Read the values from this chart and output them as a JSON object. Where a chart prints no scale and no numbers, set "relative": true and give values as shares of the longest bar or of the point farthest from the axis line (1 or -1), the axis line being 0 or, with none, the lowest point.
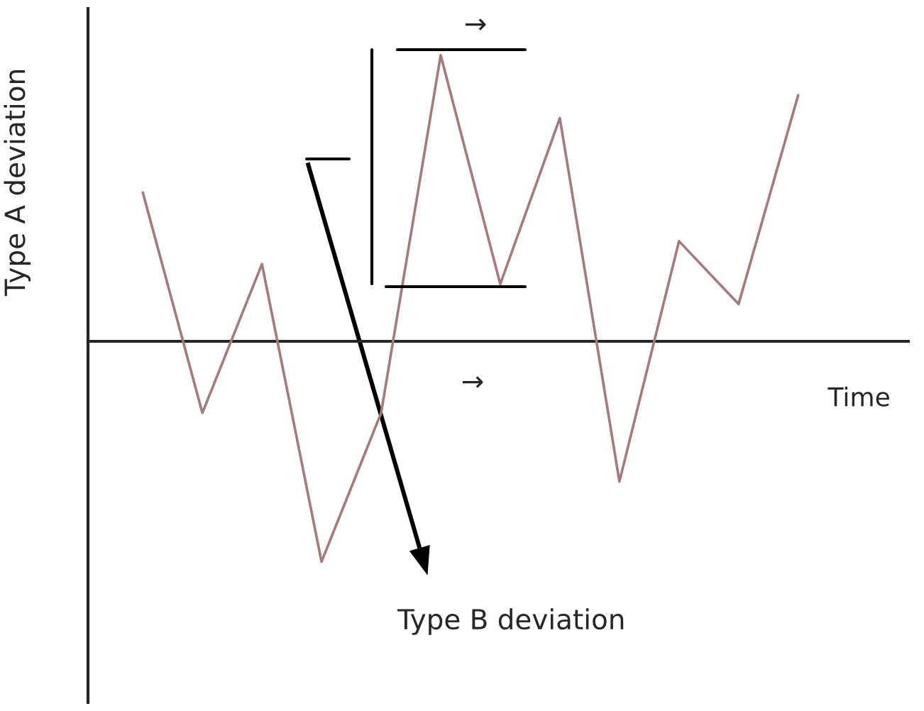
{
  "chart_data": {
    "type": "line",
    "relative": true,
    "xlabel": "Time",
    "ylabel": "Type A deviation",
    "categories": [
      null,
      null,
      null,
      null,
      null,
      null,
      null,
      null,
      null,
      null,
      null,
      null
    ],
    "series": [
      {
        "color": "#a57a7a",
        "values": [
          0.52,
          -0.25,
          0.27,
          -0.77,
          -0.25,
          1,
          0.2,
          0.78,
          -0.49,
          0.35,
          0.13,
          0.86
        ]
      }
    ],
    "annotations": [
      "Type B deviation",
      "→",
      "→"
    ]
  }
}
